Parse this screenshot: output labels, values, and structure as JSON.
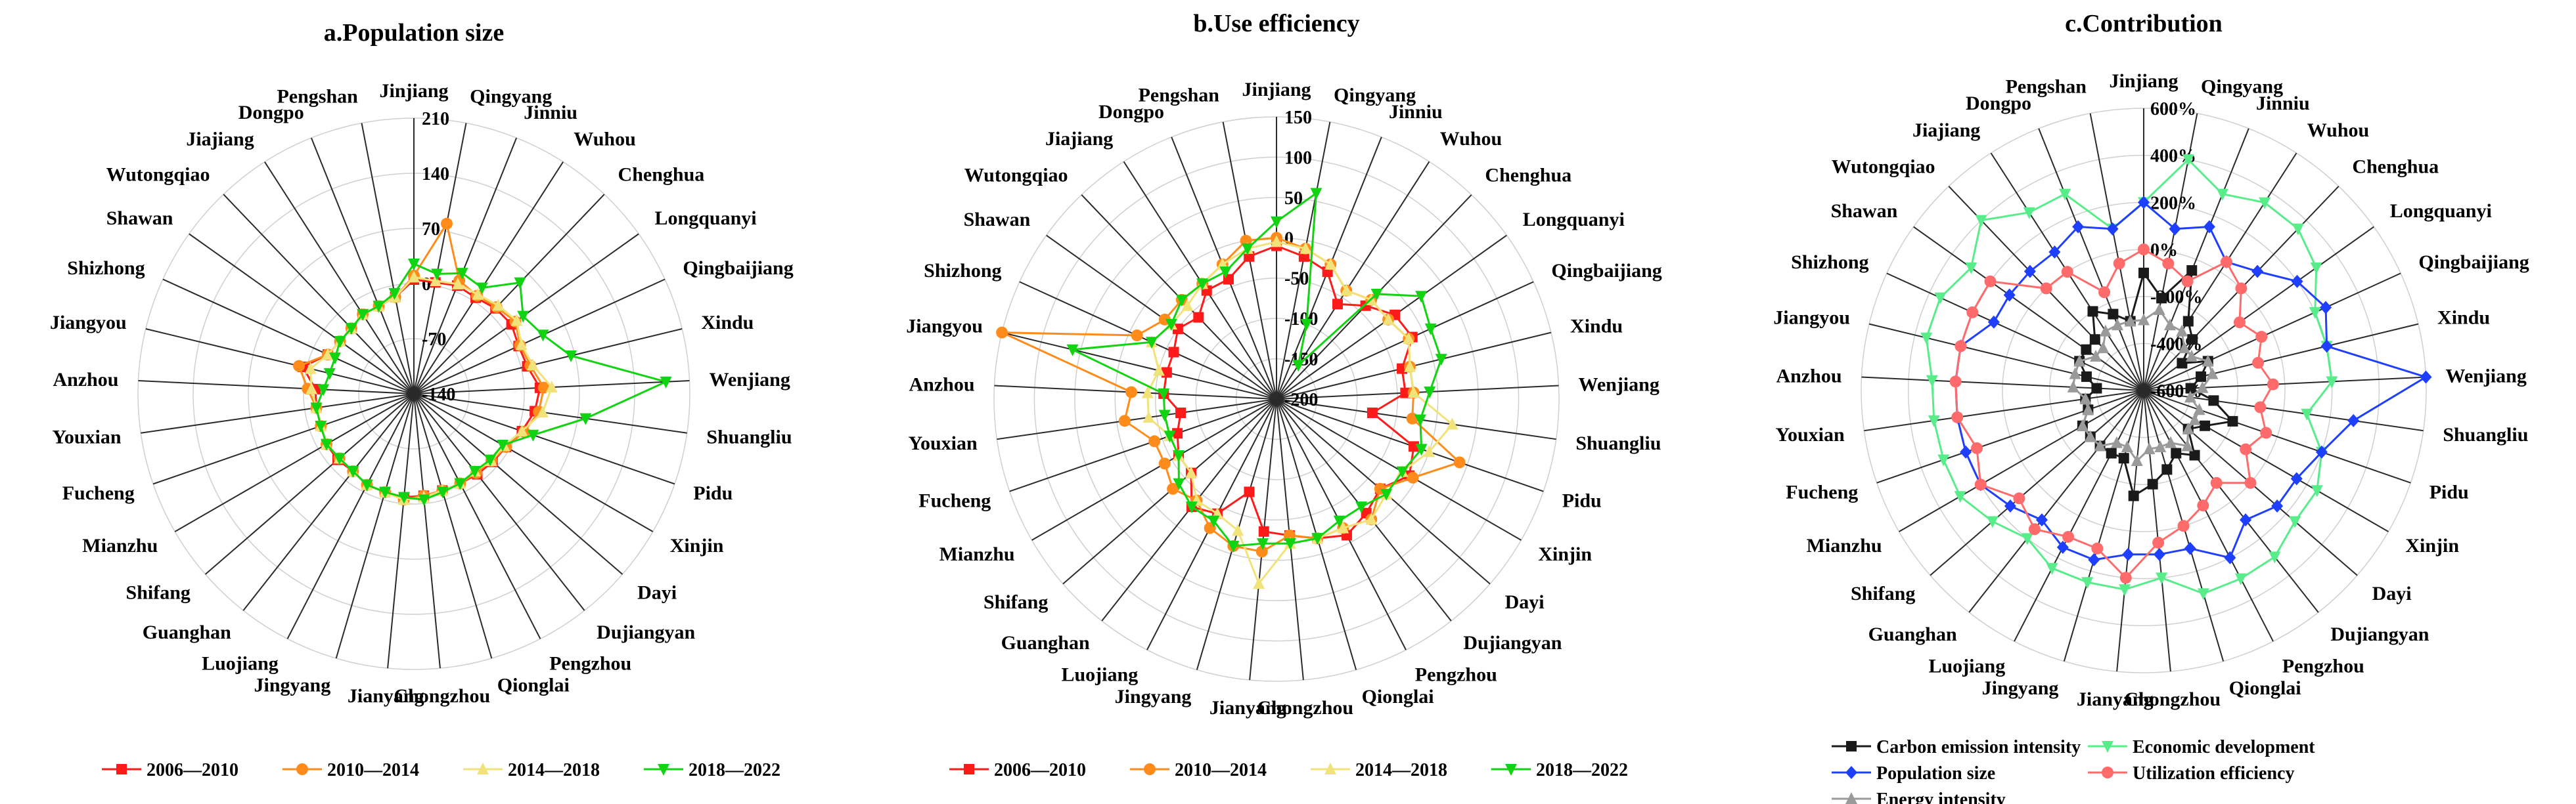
{
  "figure": {
    "colors": {
      "red": "#ff1a1a",
      "orange": "#ff8c1a",
      "yellow": "#f2e27a",
      "green": "#12d312",
      "black": "#1a1a1a",
      "lightgreen": "#59ec8a",
      "blue": "#1f3fff",
      "pink": "#ff6b6b",
      "gray": "#9a9a9a"
    }
  },
  "chart_data": [
    {
      "type": "radar",
      "title": "a.Population size",
      "axes": [
        "Jinjiang",
        "Qingyang",
        "Jinniu",
        "Wuhou",
        "Chenghua",
        "Longquanyi",
        "Qingbaijiang",
        "Xindu",
        "Wenjiang",
        "Shuangliu",
        "Pidu",
        "Xinjin",
        "Dayi",
        "Dujiangyan",
        "Pengzhou",
        "Qionglai",
        "Chongzhou",
        "Jianyang",
        "Jingyang",
        "Luojiang",
        "Guanghan",
        "Shifang",
        "Mianzhu",
        "Fucheng",
        "Youxian",
        "Anzhou",
        "Jiangyou",
        "Shizhong",
        "Shawan",
        "Wutongqiao",
        "Jiajiang",
        "Dongpo",
        "Pengshan"
      ],
      "rlim": [
        -140,
        210
      ],
      "ticks": [
        210,
        140,
        70,
        0,
        -70,
        -140
      ],
      "tick_labels": [
        "210",
        "140",
        "70",
        "0",
        "-70",
        "-140"
      ],
      "grid": true,
      "legend": "bottom",
      "series": [
        {
          "name": "2006—2010",
          "color": "#ff1a1a",
          "marker": "square",
          "values": [
            5,
            4,
            8,
            5,
            10,
            12,
            6,
            8,
            20,
            15,
            5,
            -5,
            -8,
            -10,
            -12,
            -12,
            -10,
            -8,
            -10,
            -10,
            -15,
            -12,
            -12,
            -15,
            -15,
            -15,
            5,
            -20,
            -25,
            -25,
            -20,
            -20,
            -15
          ]
        },
        {
          "name": "2010—2014",
          "color": "#ff8c1a",
          "marker": "circle",
          "values": [
            10,
            80,
            15,
            8,
            12,
            18,
            8,
            12,
            25,
            20,
            8,
            -5,
            -10,
            -12,
            -12,
            -12,
            -10,
            -5,
            -10,
            -10,
            -15,
            -15,
            -12,
            -15,
            -15,
            -5,
            10,
            -20,
            -25,
            -25,
            -20,
            -20,
            -15
          ]
        },
        {
          "name": "2014—2018",
          "color": "#f2e27a",
          "marker": "triangle",
          "values": [
            8,
            6,
            10,
            10,
            15,
            20,
            10,
            15,
            35,
            25,
            5,
            -8,
            -10,
            -15,
            -12,
            -12,
            -8,
            -5,
            -10,
            -10,
            -15,
            -15,
            -12,
            -15,
            -15,
            -10,
            -5,
            -20,
            -25,
            -25,
            -20,
            -20,
            -15
          ]
        },
        {
          "name": "2018—2022",
          "color": "#12d312",
          "marker": "triangle-down",
          "values": [
            25,
            15,
            25,
            20,
            55,
            30,
            40,
            65,
            180,
            80,
            20,
            -10,
            -12,
            -15,
            -12,
            -10,
            -5,
            -8,
            -10,
            -10,
            -15,
            -15,
            -12,
            -15,
            -15,
            -25,
            -30,
            -30,
            -25,
            -25,
            -20,
            -20,
            -10
          ]
        }
      ]
    },
    {
      "type": "radar",
      "title": "b.Use efficiency",
      "axes": [
        "Jinjiang",
        "Qingyang",
        "Jinniu",
        "Wuhou",
        "Chenghua",
        "Longquanyi",
        "Qingbaijiang",
        "Xindu",
        "Wenjiang",
        "Shuangliu",
        "Pidu",
        "Xinjin",
        "Dayi",
        "Dujiangyan",
        "Pengzhou",
        "Qionglai",
        "Chongzhou",
        "Jianyang",
        "Jingyang",
        "Luojiang",
        "Guanghan",
        "Shifang",
        "Mianzhu",
        "Fucheng",
        "Youxian",
        "Anzhou",
        "Jiangyou",
        "Shizhong",
        "Shawan",
        "Wutongqiao",
        "Jiajiang",
        "Dongpo",
        "Pengshan"
      ],
      "rlim": [
        -200,
        150
      ],
      "ticks": [
        150,
        100,
        50,
        0,
        -50,
        -100,
        -150,
        -200
      ],
      "tick_labels": [
        "150",
        "100",
        "50",
        "0",
        "-50",
        "-100",
        "-150",
        "-200"
      ],
      "grid": true,
      "legend": "bottom",
      "series": [
        {
          "name": "2006—2010",
          "color": "#ff1a1a",
          "marker": "square",
          "values": [
            -10,
            -20,
            -30,
            -60,
            -40,
            -20,
            -15,
            -40,
            -40,
            -80,
            -20,
            -10,
            -30,
            -20,
            -10,
            -20,
            -30,
            -35,
            -80,
            -40,
            -30,
            -60,
            -60,
            -70,
            -80,
            -60,
            -60,
            -60,
            -50,
            -60,
            -40,
            -40,
            -20
          ]
        },
        {
          "name": "2010—2014",
          "color": "#ff8c1a",
          "marker": "circle",
          "values": [
            0,
            -10,
            -20,
            -40,
            -30,
            -30,
            -20,
            -30,
            -30,
            -30,
            40,
            -5,
            -30,
            -10,
            -20,
            -20,
            -30,
            -10,
            -10,
            -20,
            -40,
            -30,
            -40,
            -40,
            -10,
            -20,
            150,
            -10,
            -30,
            -30,
            -30,
            -20,
            0
          ]
        },
        {
          "name": "2014—2018",
          "color": "#f2e27a",
          "marker": "triangle",
          "values": [
            -5,
            -10,
            -20,
            -40,
            -30,
            -30,
            -20,
            -30,
            -30,
            20,
            0,
            -20,
            -20,
            -10,
            -20,
            -20,
            -20,
            30,
            -30,
            -40,
            -40,
            -60,
            -60,
            -60,
            -40,
            -40,
            -50,
            -30,
            -40,
            -40,
            -30,
            -20,
            -10
          ]
        },
        {
          "name": "2018—2022",
          "color": "#12d312",
          "marker": "triangle-down",
          "values": [
            20,
            60,
            -100,
            -150,
            -20,
            20,
            10,
            10,
            -10,
            -20,
            -10,
            -20,
            -20,
            -30,
            -30,
            -20,
            -20,
            -20,
            -10,
            -30,
            -30,
            -40,
            -60,
            -60,
            -60,
            -60,
            60,
            -30,
            -40,
            -30,
            -30,
            -30,
            -10
          ]
        }
      ]
    },
    {
      "type": "radar",
      "title": "c.Contribution",
      "axes": [
        "Jinjiang",
        "Qingyang",
        "Jinniu",
        "Wuhou",
        "Chenghua",
        "Longquanyi",
        "Qingbaijiang",
        "Xindu",
        "Wenjiang",
        "Shuangliu",
        "Pidu",
        "Xinjin",
        "Dayi",
        "Dujiangyan",
        "Pengzhou",
        "Qionglai",
        "Chongzhou",
        "Jianyang",
        "Jingyang",
        "Luojiang",
        "Guanghan",
        "Shifang",
        "Mianzhu",
        "Fucheng",
        "Youxian",
        "Anzhou",
        "Jiangyou",
        "Shizhong",
        "Shawan",
        "Wutongqiao",
        "Jiajiang",
        "Dongpo",
        "Pengshan"
      ],
      "rlim": [
        -600,
        600
      ],
      "ticks": [
        600,
        400,
        200,
        0,
        -200,
        -400,
        -600
      ],
      "tick_labels": [
        "600%",
        "400%",
        "200%",
        "0%",
        "-200%",
        "-400%",
        "-600%"
      ],
      "grid": true,
      "legend": "bottom",
      "series": [
        {
          "name": "Carbon emission intensity",
          "color": "#1a1a1a",
          "marker": "square",
          "values": [
            -100,
            -200,
            -50,
            -250,
            -300,
            -400,
            -300,
            -350,
            -400,
            -300,
            -200,
            -300,
            -350,
            -250,
            -300,
            -250,
            -200,
            -150,
            -300,
            -300,
            -300,
            -300,
            -300,
            -350,
            -350,
            -400,
            -350,
            -300,
            -300,
            -300,
            -200,
            -250,
            -300
          ]
        },
        {
          "name": "Economic development",
          "color": "#59ec8a",
          "marker": "triangle-down",
          "values": [
            200,
            400,
            300,
            350,
            350,
            300,
            200,
            200,
            200,
            100,
            200,
            250,
            250,
            300,
            300,
            300,
            200,
            250,
            250,
            250,
            200,
            250,
            300,
            300,
            300,
            300,
            350,
            350,
            300,
            400,
            300,
            300,
            100
          ]
        },
        {
          "name": "Population size",
          "color": "#1f3fff",
          "marker": "diamond",
          "values": [
            200,
            100,
            150,
            50,
            100,
            200,
            250,
            200,
            600,
            300,
            200,
            150,
            150,
            100,
            200,
            100,
            100,
            100,
            150,
            150,
            100,
            150,
            200,
            200,
            200,
            200,
            200,
            100,
            100,
            100,
            100,
            150,
            100
          ]
        },
        {
          "name": "Utilization efficiency",
          "color": "#ff6b6b",
          "marker": "circle",
          "values": [
            0,
            -50,
            -100,
            50,
            0,
            -100,
            -50,
            -100,
            -50,
            -100,
            -50,
            -100,
            0,
            -100,
            -50,
            0,
            50,
            200,
            100,
            100,
            150,
            100,
            200,
            150,
            200,
            200,
            200,
            200,
            200,
            0,
            0,
            -150,
            -50
          ]
        },
        {
          "name": "Energy intensity",
          "color": "#9a9a9a",
          "marker": "triangle",
          "values": [
            -300,
            -250,
            -300,
            -300,
            -350,
            -350,
            -300,
            -300,
            -350,
            -400,
            -350,
            -350,
            -350,
            -300,
            -350,
            -350,
            -350,
            -300,
            -350,
            -350,
            -300,
            -300,
            -300,
            -350,
            -350,
            -300,
            -300,
            -300,
            -350,
            -350,
            -300,
            -300,
            -300
          ]
        }
      ]
    }
  ]
}
